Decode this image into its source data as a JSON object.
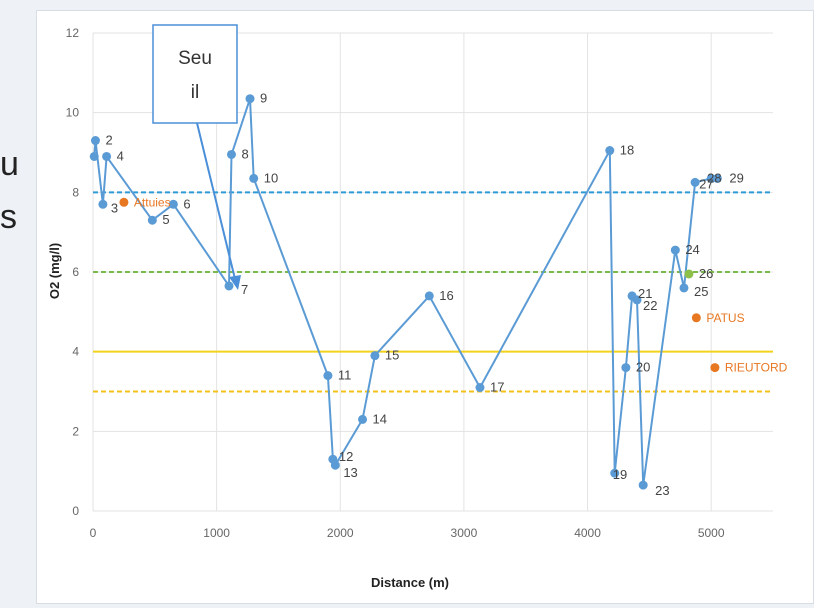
{
  "slide": {
    "fragment_1": "u",
    "fragment_2": "s"
  },
  "callout": {
    "text_line1": "Seu",
    "text_line2": "il"
  },
  "chart_data": {
    "type": "scatter",
    "xlabel": "Distance (m)",
    "ylabel": "O2 (mg/l)",
    "xlim": [
      0,
      5500
    ],
    "ylim": [
      0,
      12
    ],
    "xticks": [
      0,
      1000,
      2000,
      3000,
      4000,
      5000
    ],
    "yticks": [
      0,
      2,
      4,
      6,
      8,
      10,
      12
    ],
    "grid": true,
    "series": [
      {
        "color": "#5b9bd5",
        "points": [
          {
            "x": 10,
            "y": 8.9,
            "label": ""
          },
          {
            "x": 20,
            "y": 9.3,
            "label": "2"
          },
          {
            "x": 80,
            "y": 7.7,
            "label": "3"
          },
          {
            "x": 110,
            "y": 8.9,
            "label": "4"
          },
          {
            "x": 480,
            "y": 7.3,
            "label": "5"
          },
          {
            "x": 650,
            "y": 7.7,
            "label": "6"
          },
          {
            "x": 1100,
            "y": 5.65,
            "label": "7"
          },
          {
            "x": 1120,
            "y": 8.95,
            "label": "8"
          },
          {
            "x": 1270,
            "y": 10.35,
            "label": "9"
          },
          {
            "x": 1300,
            "y": 8.35,
            "label": "10"
          },
          {
            "x": 1900,
            "y": 3.4,
            "label": "11"
          },
          {
            "x": 1940,
            "y": 1.3,
            "label": "12"
          },
          {
            "x": 1960,
            "y": 1.15,
            "label": "13"
          },
          {
            "x": 2180,
            "y": 2.3,
            "label": "14"
          },
          {
            "x": 2280,
            "y": 3.9,
            "label": "15"
          },
          {
            "x": 2720,
            "y": 5.4,
            "label": "16"
          },
          {
            "x": 3130,
            "y": 3.1,
            "label": "17"
          },
          {
            "x": 4180,
            "y": 9.05,
            "label": "18"
          },
          {
            "x": 4220,
            "y": 0.95,
            "label": "19"
          },
          {
            "x": 4310,
            "y": 3.6,
            "label": "20"
          },
          {
            "x": 4360,
            "y": 5.4,
            "label": "21"
          },
          {
            "x": 4400,
            "y": 5.3,
            "label": "22"
          },
          {
            "x": 4450,
            "y": 0.65,
            "label": "23"
          },
          {
            "x": 4710,
            "y": 6.55,
            "label": "24"
          },
          {
            "x": 4780,
            "y": 5.6,
            "label": "25"
          },
          {
            "x": 4870,
            "y": 8.25,
            "label": "27"
          },
          {
            "x": 5000,
            "y": 8.35,
            "label": "28"
          },
          {
            "x": 5050,
            "y": 8.35,
            "label": "29"
          }
        ]
      },
      {
        "color": "#e87722",
        "points": [
          {
            "x": 250,
            "y": 7.75,
            "label": "Attuies"
          },
          {
            "x": 4880,
            "y": 4.85,
            "label": "PATUS"
          },
          {
            "x": 5030,
            "y": 3.6,
            "label": "RIEUTORD"
          }
        ]
      },
      {
        "color": "#8cc04a",
        "points": [
          {
            "x": 4820,
            "y": 5.95,
            "label": "26"
          }
        ]
      }
    ],
    "reference_lines": [
      {
        "y": 8.0,
        "color": "#2e9bd6",
        "style": "dashed"
      },
      {
        "y": 6.0,
        "color": "#7ab94a",
        "style": "dashed"
      },
      {
        "y": 4.0,
        "color": "#f2d21b",
        "style": "solid"
      },
      {
        "y": 3.0,
        "color": "#f2c21b",
        "style": "dashed"
      }
    ]
  }
}
